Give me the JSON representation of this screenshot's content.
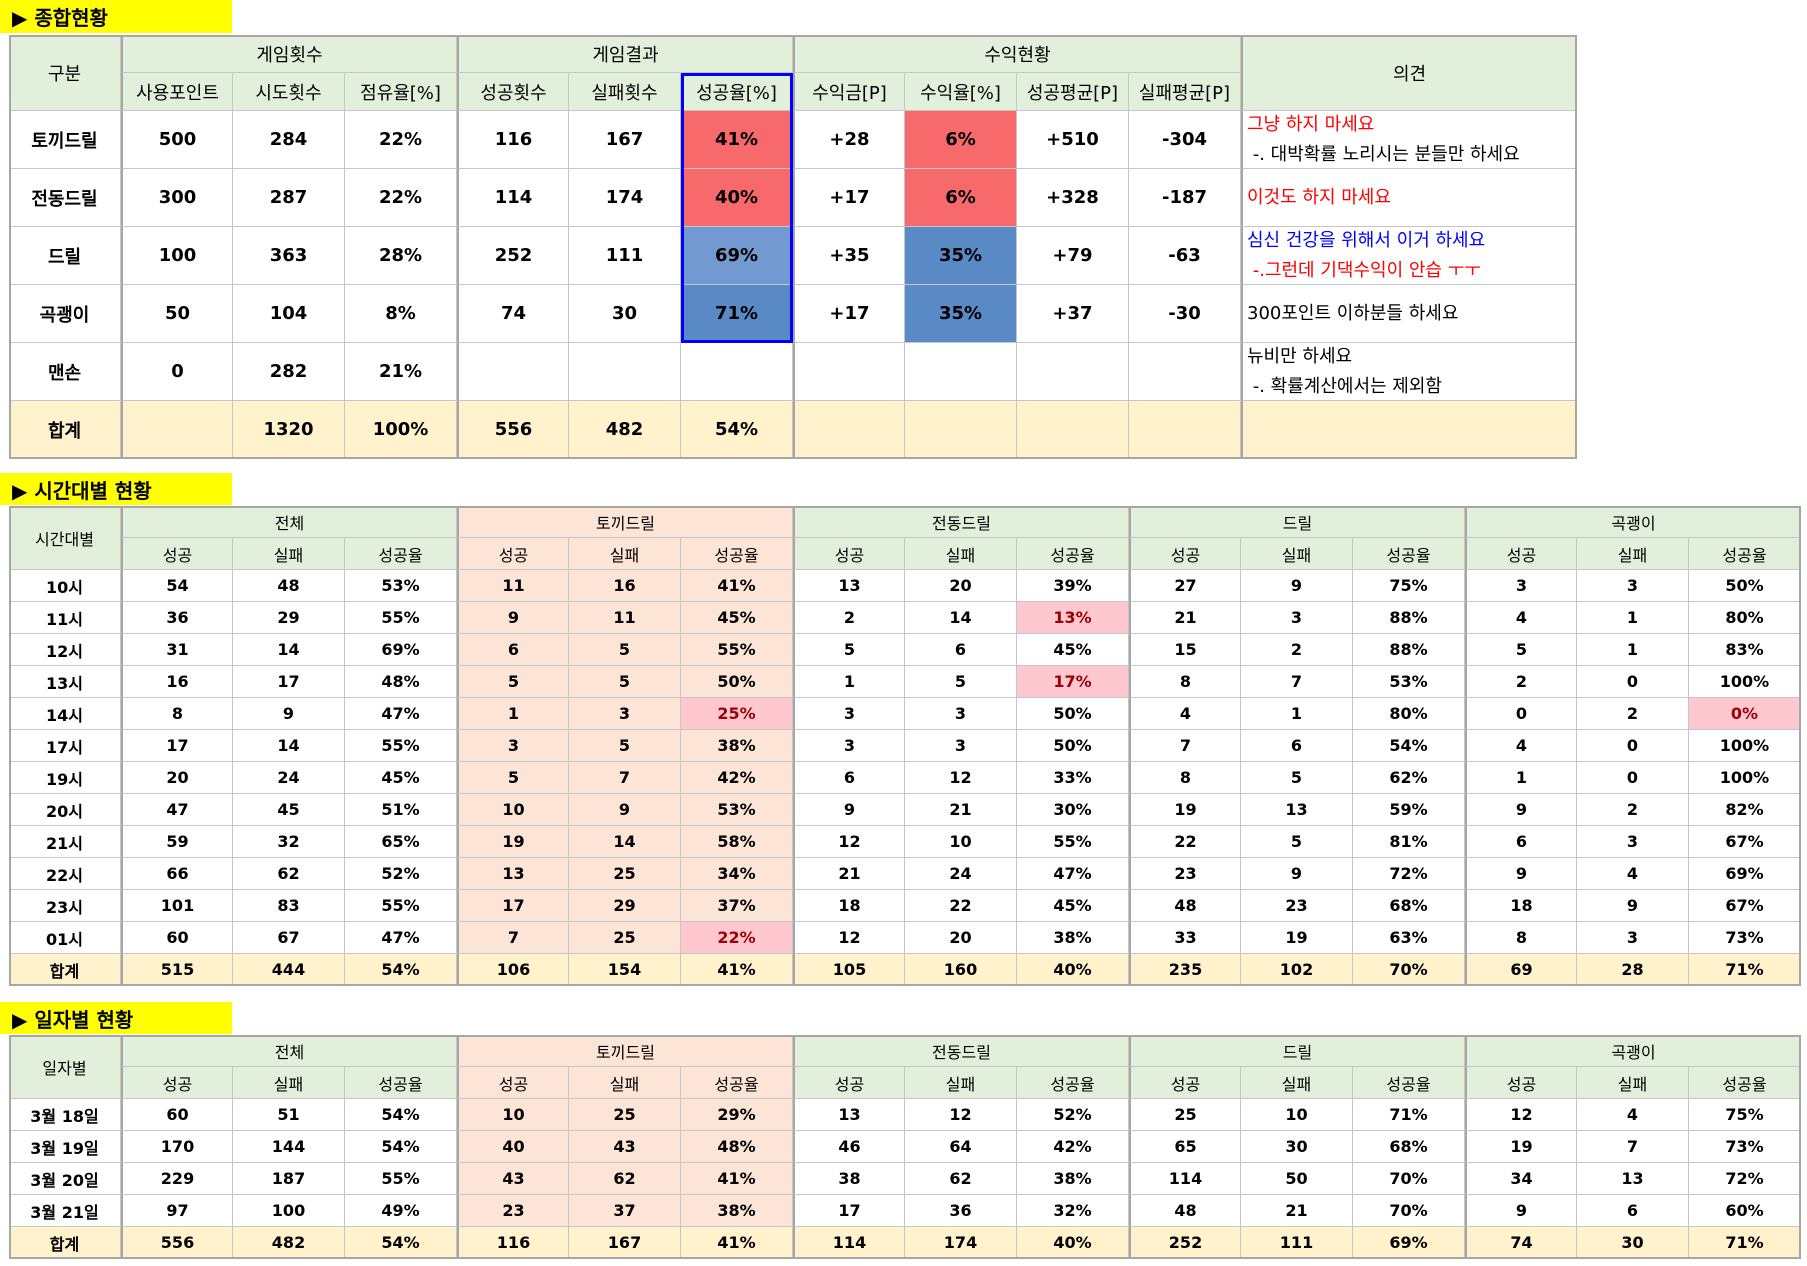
{
  "summary": {
    "title": "▶ 종합현황",
    "corner": "구분",
    "groups": [
      {
        "label": "게임횟수",
        "span": 3
      },
      {
        "label": "게임결과",
        "span": 3
      },
      {
        "label": "수익현황",
        "span": 4
      }
    ],
    "opinion_header": "의견",
    "columns": [
      "사용포인트",
      "시도횟수",
      "점유율[%]",
      "성공횟수",
      "실패횟수",
      "성공율[%]",
      "수익금[P]",
      "수익율[%]",
      "성공평균[P]",
      "실패평균[P]"
    ],
    "rows": [
      [
        "토끼드릴",
        "500",
        "284",
        "22%",
        "116",
        "167",
        {
          "text": "41%",
          "fill": "#f8696b"
        },
        "+28",
        {
          "text": "6%",
          "fill": "#f8696b"
        },
        "+510",
        "-304"
      ],
      [
        "전동드릴",
        "300",
        "287",
        "22%",
        "114",
        "174",
        {
          "text": "40%",
          "fill": "#f8696b"
        },
        "+17",
        {
          "text": "6%",
          "fill": "#f8696b"
        },
        "+328",
        "-187"
      ],
      [
        "드릴",
        "100",
        "363",
        "28%",
        "252",
        "111",
        {
          "text": "69%",
          "fill": "#7299d0"
        },
        "+35",
        {
          "text": "35%",
          "fill": "#5a8ac6"
        },
        "+79",
        "-63"
      ],
      [
        "곡괭이",
        "50",
        "104",
        "8%",
        "74",
        "30",
        {
          "text": "71%",
          "fill": "#5a8ac6"
        },
        "+17",
        {
          "text": "35%",
          "fill": "#5a8ac6"
        },
        "+37",
        "-30"
      ],
      [
        "맨손",
        "0",
        "282",
        "21%"
      ]
    ],
    "total": [
      "합계",
      null,
      "1320",
      "100%",
      "556",
      "482",
      "54%"
    ],
    "opinions": [
      [
        {
          "text": "그냥 하지 마세요",
          "color": "#ff0000"
        },
        {
          "text": " -. 대박확률 노리시는 분들만 하세요",
          "color": "#000000"
        }
      ],
      [
        {
          "text": "이것도 하지 마세요",
          "color": "#ff0000"
        }
      ],
      [
        {
          "text": "심신 건강을 위해서 이거 하세요",
          "color": "#0000ff"
        },
        {
          "text": " -.그런데 기댁수익이 안습 ㅜㅜ",
          "color": "#ff0000"
        }
      ],
      [
        {
          "text": "300포인트 이하분들 하세요",
          "color": "#000000"
        }
      ],
      [
        {
          "text": "뉴비만 하세요",
          "color": "#000000"
        },
        {
          "text": " -. 확률계산에서는 제외함",
          "color": "#000000"
        }
      ]
    ]
  },
  "hourly": {
    "title": "▶ 시간대별 현황",
    "corner": "시간대별",
    "groups": [
      "전체",
      "토끼드릴",
      "전동드릴",
      "드릴",
      "곡괭이"
    ],
    "columns": [
      "성공",
      "실패",
      "성공율"
    ],
    "rows": [
      [
        "10시",
        "54",
        "48",
        "53%",
        "11",
        "16",
        "41%",
        "13",
        "20",
        "39%",
        "27",
        "9",
        "75%",
        "3",
        "3",
        "50%"
      ],
      [
        "11시",
        "36",
        "29",
        "55%",
        "9",
        "11",
        "45%",
        "2",
        "14",
        {
          "text": "13%",
          "fill": "#ffc7ce",
          "color": "#9c0006"
        },
        "21",
        "3",
        "88%",
        "4",
        "1",
        "80%"
      ],
      [
        "12시",
        "31",
        "14",
        "69%",
        "6",
        "5",
        "55%",
        "5",
        "6",
        "45%",
        "15",
        "2",
        "88%",
        "5",
        "1",
        "83%"
      ],
      [
        "13시",
        "16",
        "17",
        "48%",
        "5",
        "5",
        "50%",
        "1",
        "5",
        {
          "text": "17%",
          "fill": "#ffc7ce",
          "color": "#9c0006"
        },
        "8",
        "7",
        "53%",
        "2",
        "0",
        "100%"
      ],
      [
        "14시",
        "8",
        "9",
        "47%",
        "1",
        "3",
        {
          "text": "25%",
          "fill": "#ffc7ce",
          "color": "#9c0006"
        },
        "3",
        "3",
        "50%",
        "4",
        "1",
        "80%",
        "0",
        "2",
        {
          "text": "0%",
          "fill": "#ffc7ce",
          "color": "#9c0006"
        }
      ],
      [
        "17시",
        "17",
        "14",
        "55%",
        "3",
        "5",
        "38%",
        "3",
        "3",
        "50%",
        "7",
        "6",
        "54%",
        "4",
        "0",
        "100%"
      ],
      [
        "19시",
        "20",
        "24",
        "45%",
        "5",
        "7",
        "42%",
        "6",
        "12",
        "33%",
        "8",
        "5",
        "62%",
        "1",
        "0",
        "100%"
      ],
      [
        "20시",
        "47",
        "45",
        "51%",
        "10",
        "9",
        "53%",
        "9",
        "21",
        "30%",
        "19",
        "13",
        "59%",
        "9",
        "2",
        "82%"
      ],
      [
        "21시",
        "59",
        "32",
        "65%",
        "19",
        "14",
        "58%",
        "12",
        "10",
        "55%",
        "22",
        "5",
        "81%",
        "6",
        "3",
        "67%"
      ],
      [
        "22시",
        "66",
        "62",
        "52%",
        "13",
        "25",
        "34%",
        "21",
        "24",
        "47%",
        "23",
        "9",
        "72%",
        "9",
        "4",
        "69%"
      ],
      [
        "23시",
        "101",
        "83",
        "55%",
        "17",
        "29",
        "37%",
        "18",
        "22",
        "45%",
        "48",
        "23",
        "68%",
        "18",
        "9",
        "67%"
      ],
      [
        "01시",
        "60",
        "67",
        "47%",
        "7",
        "25",
        {
          "text": "22%",
          "fill": "#ffc7ce",
          "color": "#9c0006"
        },
        "12",
        "20",
        "38%",
        "33",
        "19",
        "63%",
        "8",
        "3",
        "73%"
      ]
    ],
    "total": [
      "합계",
      "515",
      "444",
      "54%",
      "106",
      "154",
      "41%",
      "105",
      "160",
      "40%",
      "235",
      "102",
      "70%",
      "69",
      "28",
      "71%"
    ]
  },
  "daily": {
    "title": "▶ 일자별 현황",
    "corner": "일자별",
    "groups": [
      "전체",
      "토끼드릴",
      "전동드릴",
      "드릴",
      "곡괭이"
    ],
    "columns": [
      "성공",
      "실패",
      "성공율"
    ],
    "rows": [
      [
        "3월 18일",
        "60",
        "51",
        "54%",
        "10",
        "25",
        "29%",
        "13",
        "12",
        "52%",
        "25",
        "10",
        "71%",
        "12",
        "4",
        "75%"
      ],
      [
        "3월 19일",
        "170",
        "144",
        "54%",
        "40",
        "43",
        "48%",
        "46",
        "64",
        "42%",
        "65",
        "30",
        "68%",
        "19",
        "7",
        "73%"
      ],
      [
        "3월 20일",
        "229",
        "187",
        "55%",
        "43",
        "62",
        "41%",
        "38",
        "62",
        "38%",
        "114",
        "50",
        "70%",
        "34",
        "13",
        "72%"
      ],
      [
        "3월 21일",
        "97",
        "100",
        "49%",
        "23",
        "37",
        "38%",
        "17",
        "36",
        "32%",
        "48",
        "21",
        "70%",
        "9",
        "6",
        "60%"
      ]
    ],
    "total": [
      "합계",
      "556",
      "482",
      "54%",
      "116",
      "167",
      "41%",
      "114",
      "174",
      "40%",
      "252",
      "111",
      "69%",
      "74",
      "30",
      "71%"
    ]
  }
}
